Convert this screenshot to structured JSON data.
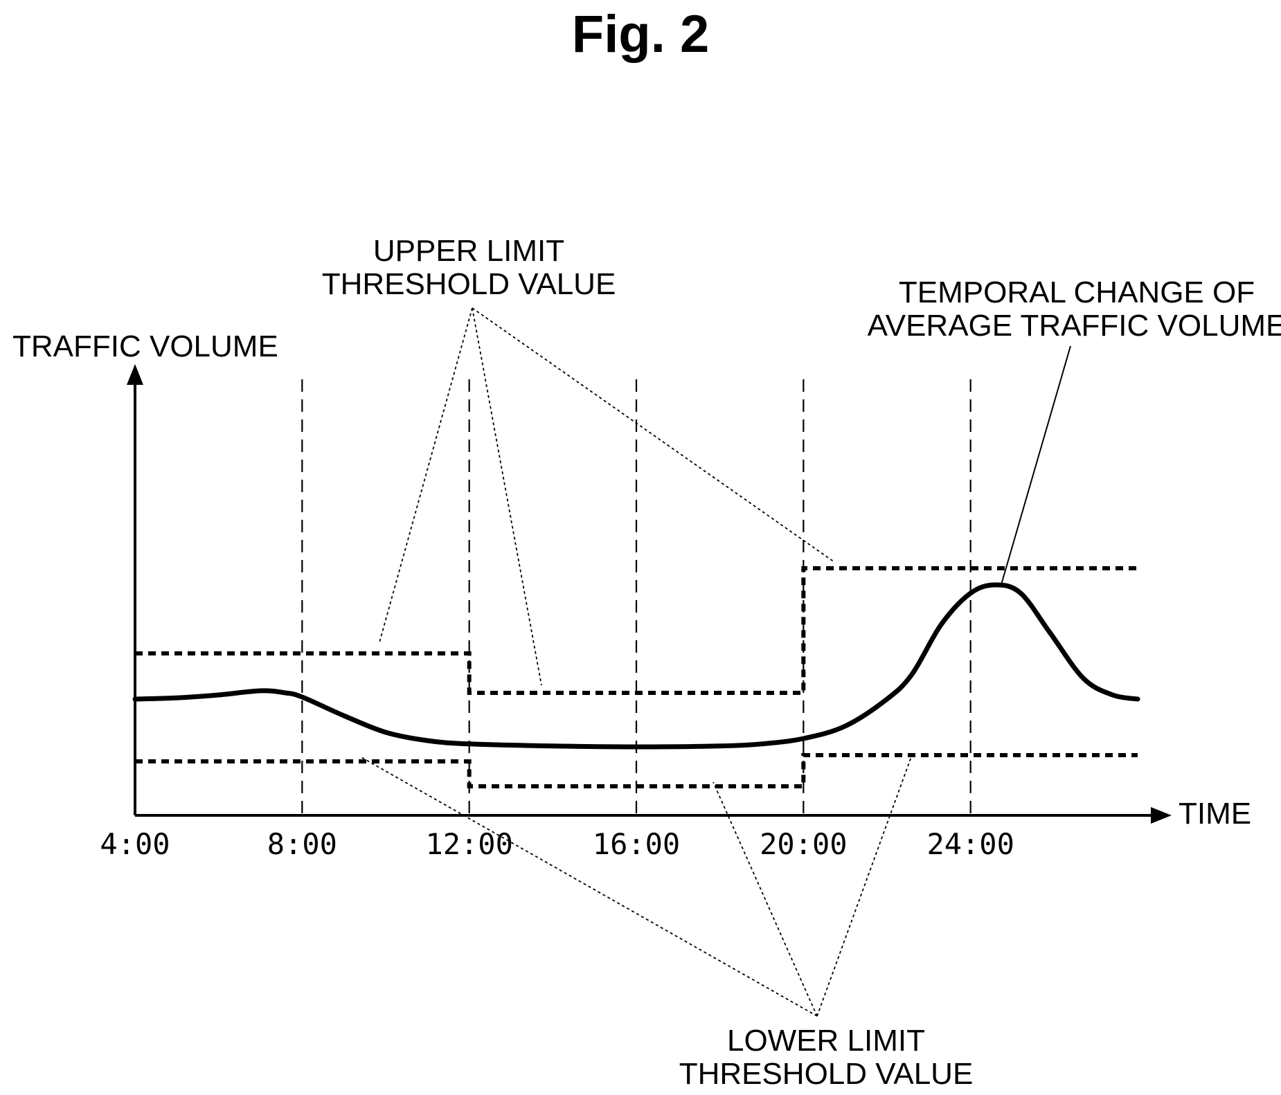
{
  "figure": {
    "title": "Fig. 2"
  },
  "chart_data": {
    "type": "line",
    "title": "",
    "xlabel": "TIME",
    "ylabel": "TRAFFIC VOLUME",
    "x_ticks": [
      "4:00",
      "8:00",
      "12:00",
      "16:00",
      "20:00",
      "24:00"
    ],
    "x_tick_values": [
      4,
      8,
      12,
      16,
      20,
      24
    ],
    "xlim": [
      4,
      28
    ],
    "ylim": [
      0,
      10
    ],
    "grid": "vertical dashed lines at 8:00, 12:00, 16:00, 20:00, 24:00",
    "series": [
      {
        "name": "TEMPORAL CHANGE OF AVERAGE TRAFFIC VOLUME",
        "style": "solid",
        "points": [
          [
            4,
            2.8
          ],
          [
            5,
            2.83
          ],
          [
            6,
            2.9
          ],
          [
            7,
            3.0
          ],
          [
            7.6,
            2.95
          ],
          [
            8,
            2.85
          ],
          [
            9,
            2.4
          ],
          [
            10,
            2.0
          ],
          [
            11,
            1.8
          ],
          [
            12,
            1.72
          ],
          [
            14,
            1.67
          ],
          [
            16,
            1.65
          ],
          [
            18,
            1.67
          ],
          [
            19,
            1.72
          ],
          [
            20,
            1.85
          ],
          [
            21,
            2.15
          ],
          [
            22,
            2.8
          ],
          [
            22.6,
            3.4
          ],
          [
            23.3,
            4.6
          ],
          [
            24,
            5.35
          ],
          [
            24.6,
            5.55
          ],
          [
            25.2,
            5.35
          ],
          [
            25.9,
            4.4
          ],
          [
            26.7,
            3.3
          ],
          [
            27.4,
            2.9
          ],
          [
            28,
            2.8
          ]
        ]
      },
      {
        "name": "UPPER LIMIT THRESHOLD VALUE",
        "style": "dashed-step",
        "segments": [
          {
            "x0": 4,
            "x1": 12,
            "y": 3.9
          },
          {
            "x0": 12,
            "x1": 20,
            "y": 2.95
          },
          {
            "x0": 20,
            "x1": 28,
            "y": 5.95
          }
        ]
      },
      {
        "name": "LOWER LIMIT THRESHOLD VALUE",
        "style": "dashed-step",
        "segments": [
          {
            "x0": 4,
            "x1": 12,
            "y": 1.3
          },
          {
            "x0": 12,
            "x1": 20,
            "y": 0.7
          },
          {
            "x0": 20,
            "x1": 28,
            "y": 1.45
          }
        ]
      }
    ],
    "annotations": {
      "upper": [
        "UPPER LIMIT",
        "THRESHOLD VALUE"
      ],
      "lower": [
        "LOWER LIMIT",
        "THRESHOLD VALUE"
      ],
      "average": [
        "TEMPORAL CHANGE OF",
        "AVERAGE TRAFFIC VOLUME"
      ]
    }
  }
}
